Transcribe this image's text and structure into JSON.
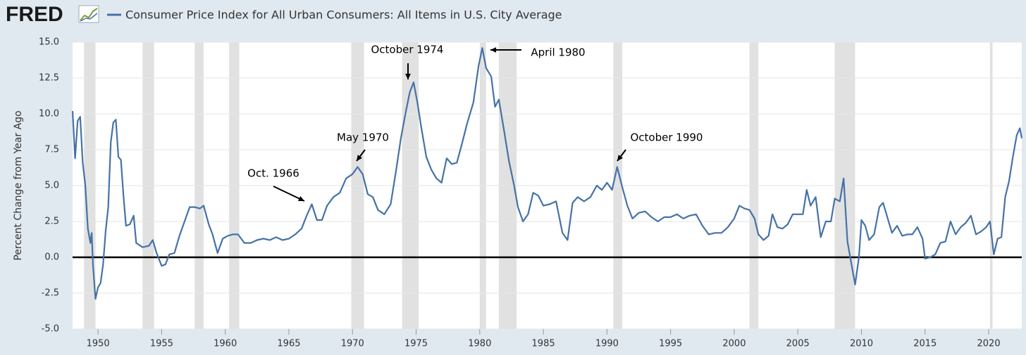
{
  "chart_data": {
    "type": "line",
    "logo": "FRED",
    "ylabel": "Percent Change from Year Ago",
    "xlim": [
      1948,
      2022.6
    ],
    "ylim": [
      -5,
      15
    ],
    "xticks": [
      1950,
      1955,
      1960,
      1965,
      1970,
      1975,
      1980,
      1985,
      1990,
      1995,
      2000,
      2005,
      2010,
      2015,
      2020
    ],
    "yticks": [
      {
        "value": -5,
        "label": "-5.0"
      },
      {
        "value": -2.5,
        "label": "-2.5"
      },
      {
        "value": 0,
        "label": "0.0"
      },
      {
        "value": 2.5,
        "label": "2.5"
      },
      {
        "value": 5,
        "label": "5.0"
      },
      {
        "value": 7.5,
        "label": "7.5"
      },
      {
        "value": 10,
        "label": "10.0"
      },
      {
        "value": 12.5,
        "label": "12.5"
      },
      {
        "value": 15,
        "label": "15.0"
      }
    ],
    "grid": true,
    "zero_line": true,
    "recession_color": "#e1e1e1",
    "recessions": [
      [
        1948.9,
        1949.8
      ],
      [
        1953.5,
        1954.4
      ],
      [
        1957.6,
        1958.3
      ],
      [
        1960.3,
        1961.1
      ],
      [
        1969.9,
        1970.9
      ],
      [
        1973.9,
        1975.2
      ],
      [
        1980.0,
        1980.5
      ],
      [
        1981.5,
        1982.9
      ],
      [
        1990.5,
        1991.2
      ],
      [
        2001.2,
        2001.9
      ],
      [
        2007.9,
        2009.5
      ],
      [
        2020.1,
        2020.3
      ]
    ],
    "annotations": [
      {
        "text": "Oct. 1966"
      },
      {
        "text": "May 1970"
      },
      {
        "text": "October 1974"
      },
      {
        "text": "April 1980"
      },
      {
        "text": "October 1990"
      }
    ],
    "x": [
      1948.0,
      1948.2,
      1948.4,
      1948.6,
      1948.8,
      1949.0,
      1949.2,
      1949.4,
      1949.5,
      1949.6,
      1949.8,
      1950.0,
      1950.2,
      1950.4,
      1950.6,
      1950.8,
      1951.0,
      1951.2,
      1951.4,
      1951.6,
      1951.8,
      1952.0,
      1952.2,
      1952.5,
      1952.8,
      1953.0,
      1953.5,
      1954.0,
      1954.3,
      1954.6,
      1955.0,
      1955.3,
      1955.6,
      1956.0,
      1956.4,
      1956.8,
      1957.2,
      1957.6,
      1958.0,
      1958.3,
      1958.7,
      1959.0,
      1959.4,
      1959.8,
      1960.2,
      1960.6,
      1961.0,
      1961.5,
      1962.0,
      1962.5,
      1963.0,
      1963.5,
      1964.0,
      1964.5,
      1965.0,
      1965.5,
      1966.0,
      1966.4,
      1966.8,
      1967.2,
      1967.6,
      1968.0,
      1968.5,
      1969.0,
      1969.5,
      1970.0,
      1970.4,
      1970.8,
      1971.2,
      1971.6,
      1972.0,
      1972.5,
      1973.0,
      1973.4,
      1973.8,
      1974.2,
      1974.5,
      1974.8,
      1975.1,
      1975.4,
      1975.8,
      1976.2,
      1976.6,
      1977.0,
      1977.4,
      1977.8,
      1978.2,
      1978.6,
      1979.0,
      1979.5,
      1979.9,
      1980.2,
      1980.5,
      1980.9,
      1981.2,
      1981.5,
      1981.9,
      1982.3,
      1982.7,
      1983.0,
      1983.4,
      1983.8,
      1984.2,
      1984.6,
      1985.0,
      1985.5,
      1986.0,
      1986.5,
      1986.9,
      1987.3,
      1987.7,
      1988.2,
      1988.7,
      1989.2,
      1989.6,
      1990.0,
      1990.4,
      1990.8,
      1991.2,
      1991.6,
      1992.0,
      1992.5,
      1993.0,
      1993.5,
      1994.0,
      1994.5,
      1995.0,
      1995.5,
      1996.0,
      1996.5,
      1997.0,
      1997.5,
      1998.0,
      1998.5,
      1999.0,
      1999.5,
      2000.0,
      2000.4,
      2000.8,
      2001.2,
      2001.6,
      2001.9,
      2002.3,
      2002.7,
      2003.0,
      2003.4,
      2003.8,
      2004.2,
      2004.6,
      2005.0,
      2005.4,
      2005.7,
      2006.0,
      2006.4,
      2006.8,
      2007.2,
      2007.6,
      2007.9,
      2008.3,
      2008.6,
      2008.9,
      2009.2,
      2009.5,
      2009.8,
      2010.0,
      2010.3,
      2010.6,
      2011.0,
      2011.4,
      2011.7,
      2012.0,
      2012.4,
      2012.8,
      2013.2,
      2013.6,
      2014.0,
      2014.4,
      2014.8,
      2015.0,
      2015.4,
      2015.8,
      2016.2,
      2016.6,
      2017.0,
      2017.4,
      2017.8,
      2018.2,
      2018.6,
      2019.0,
      2019.4,
      2019.8,
      2020.1,
      2020.4,
      2020.7,
      2021.0,
      2021.3,
      2021.6,
      2021.9,
      2022.2,
      2022.45,
      2022.6
    ],
    "series": [
      {
        "name": "Consumer Price Index for All Urban Consumers: All Items in U.S. City Average",
        "color": "#4572a7",
        "values": [
          10.2,
          6.9,
          9.5,
          9.8,
          6.6,
          5.0,
          2.0,
          1.0,
          1.7,
          -0.5,
          -2.9,
          -2.1,
          -1.8,
          -0.5,
          1.8,
          3.5,
          8.0,
          9.4,
          9.6,
          7.0,
          6.8,
          4.3,
          2.2,
          2.3,
          2.9,
          1.0,
          0.7,
          0.8,
          1.2,
          0.3,
          -0.6,
          -0.5,
          0.2,
          0.3,
          1.5,
          2.5,
          3.5,
          3.5,
          3.4,
          3.6,
          2.3,
          1.6,
          0.3,
          1.3,
          1.5,
          1.6,
          1.6,
          1.0,
          1.0,
          1.2,
          1.3,
          1.2,
          1.4,
          1.2,
          1.3,
          1.6,
          2.0,
          2.9,
          3.7,
          2.6,
          2.6,
          3.6,
          4.2,
          4.5,
          5.5,
          5.8,
          6.3,
          5.8,
          4.4,
          4.2,
          3.3,
          3.0,
          3.7,
          5.9,
          8.3,
          10.2,
          11.5,
          12.2,
          10.8,
          9.1,
          7.0,
          6.1,
          5.5,
          5.2,
          6.9,
          6.5,
          6.6,
          7.9,
          9.3,
          10.8,
          13.3,
          14.6,
          13.2,
          12.6,
          10.5,
          11.0,
          8.9,
          6.7,
          5.0,
          3.5,
          2.5,
          3.0,
          4.5,
          4.3,
          3.6,
          3.7,
          3.9,
          1.7,
          1.2,
          3.8,
          4.2,
          3.9,
          4.2,
          5.0,
          4.7,
          5.2,
          4.7,
          6.3,
          4.9,
          3.6,
          2.7,
          3.1,
          3.2,
          2.8,
          2.5,
          2.8,
          2.8,
          3.0,
          2.7,
          2.9,
          3.0,
          2.2,
          1.6,
          1.7,
          1.7,
          2.1,
          2.7,
          3.6,
          3.4,
          3.3,
          2.7,
          1.6,
          1.2,
          1.5,
          3.0,
          2.1,
          2.0,
          2.3,
          3.0,
          3.0,
          3.0,
          4.7,
          3.6,
          4.2,
          1.4,
          2.5,
          2.5,
          4.1,
          3.9,
          5.5,
          1.1,
          -0.4,
          -1.9,
          0.0,
          2.6,
          2.2,
          1.2,
          1.6,
          3.5,
          3.8,
          2.9,
          1.7,
          2.2,
          1.5,
          1.6,
          1.6,
          2.1,
          1.3,
          -0.1,
          0.0,
          0.2,
          1.0,
          1.1,
          2.5,
          1.6,
          2.1,
          2.4,
          2.9,
          1.6,
          1.8,
          2.1,
          2.5,
          0.2,
          1.3,
          1.4,
          4.2,
          5.3,
          7.0,
          8.5,
          9.0,
          8.3
        ]
      }
    ]
  }
}
